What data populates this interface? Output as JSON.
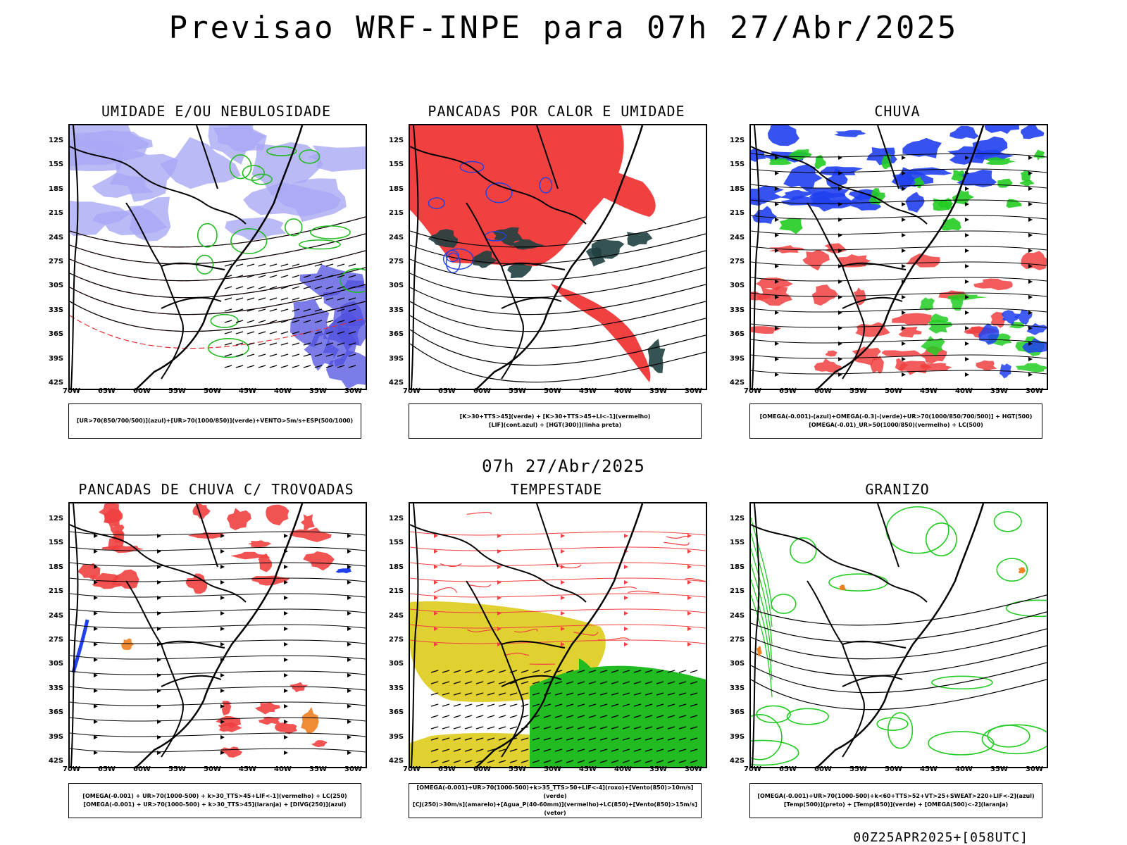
{
  "title": "Previsao WRF-INPE  para 07h 27/Abr/2025",
  "mid_date": "07h 27/Abr/2025",
  "footer": "00Z25APR2025+[058UTC]",
  "lat_labels": [
    "12S",
    "15S",
    "18S",
    "21S",
    "24S",
    "27S",
    "30S",
    "33S",
    "36S",
    "39S",
    "42S"
  ],
  "lon_labels": [
    "70W",
    "65W",
    "60W",
    "55W",
    "50W",
    "45W",
    "40W",
    "35W",
    "30W"
  ],
  "panels": [
    {
      "title": "UMIDADE E/OU NEBULOSIDADE",
      "legend1": "[UR>70(850/700/500)](azul)+[UR>70(1000/850)](verde)+VENTO>5m/s+ESP(500/1000)",
      "legend2": "",
      "colors": {
        "fill1": "#a9a9f5",
        "fill2": "#5050e0",
        "line1": "#22bb22",
        "line2": "#e03030"
      }
    },
    {
      "title": "PANCADAS POR CALOR E UMIDADE",
      "legend1": "[K>30+TTS>45](verde) + [K>30+TTS>45+LI<-1](vermelho)",
      "legend2": "[LIF](cont.azul) + [HGT(300)](linha preta)",
      "colors": {
        "fill1": "#f04040",
        "fill2": "#204040",
        "line1": "#2040e0",
        "line2": "#000000"
      }
    },
    {
      "title": "CHUVA",
      "legend1": "[OMEGA(-0.001)-(azul)+OMEGA(-0.3)-(verde)+UR>70(1000/850/700/500)] + HGT(500)",
      "legend2": "[OMEGA(-0.01)_UR>50(1000/850)(vermelho) + LC(500)",
      "colors": {
        "fill1": "#2040f0",
        "fill2": "#22cc22",
        "line1": "#f04040",
        "line2": "#000000"
      }
    },
    {
      "title": "PANCADAS DE CHUVA C/ TROVOADAS",
      "legend1": "[OMEGA(-0.001) + UR>70(1000-500) + k>30_TTS>45+LIF<-1](vermelho) + LC(250)",
      "legend2": "[OMEGA(-0.001) + UR>70(1000-500) + k>30_TTS>45](laranja) + [DIVG(250)](azul)",
      "colors": {
        "fill1": "#f04040",
        "fill2": "#f08020",
        "line1": "#2040f0",
        "line2": "#000000"
      }
    },
    {
      "title": "TEMPESTADE",
      "legend1": "[OMEGA(-0.001)+UR>70(1000-500)+k>35_TTS>50+LIF<-4](roxo)+[Vento(850)>10m/s](verde)",
      "legend2": "[CJ(250)>30m/s](amarelo)+[Agua_P(40-60mm)](vermelho)+LC(850)+[Vento(850)>15m/s](vetor)",
      "colors": {
        "fill1": "#e0d030",
        "fill2": "#22bb22",
        "line1": "#f04040",
        "line2": "#000000"
      }
    },
    {
      "title": "GRANIZO",
      "legend1": "[OMEGA(-0.001)+UR>70(1000-500)+k<60+TTS>52+VT>25+SWEAT>220+LIF<-2](azul)",
      "legend2": "[Temp(500)](preto) + [Temp(850)](verde) + [OMEGA(500)<-2](laranja)",
      "colors": {
        "fill1": "#ffffff",
        "fill2": "#f08020",
        "line1": "#22cc22",
        "line2": "#000000"
      }
    }
  ]
}
